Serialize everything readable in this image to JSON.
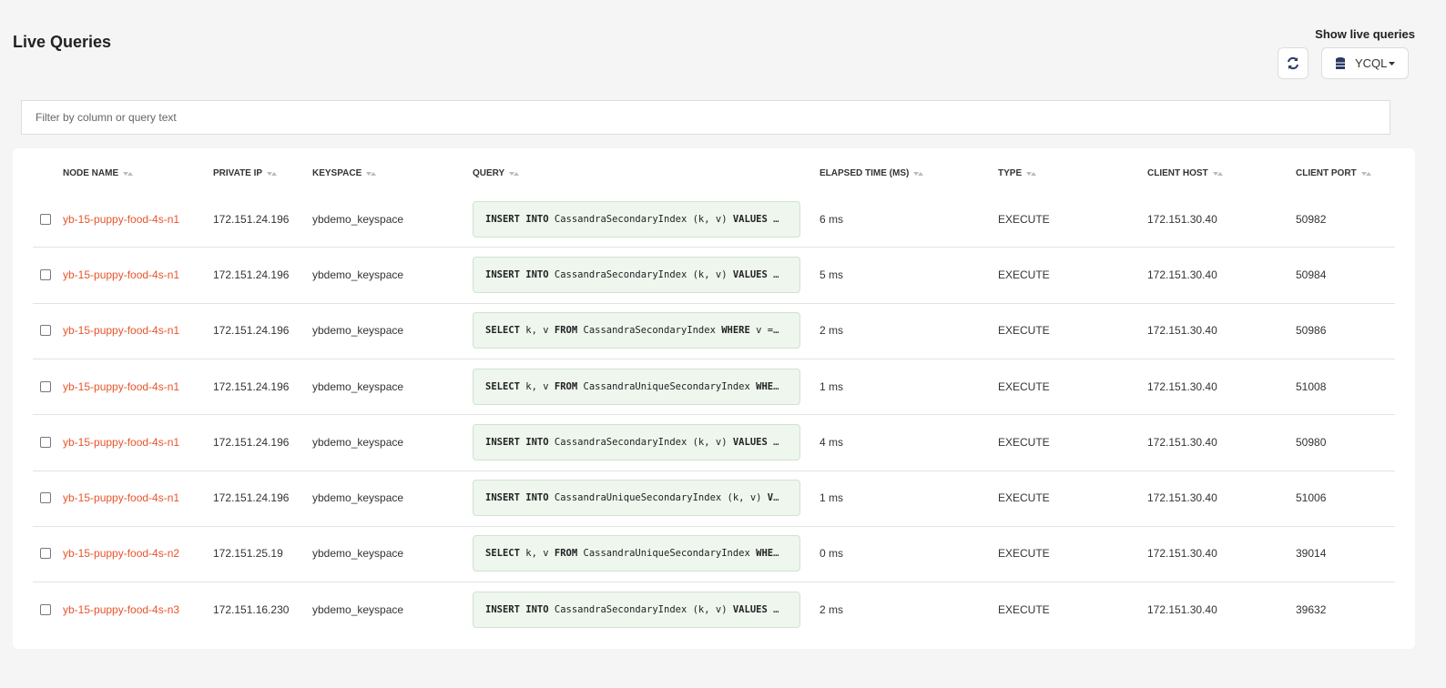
{
  "header": {
    "title": "Live Queries",
    "show_label": "Show live queries",
    "api_button": "YCQL"
  },
  "filter": {
    "placeholder": "Filter by column or query text"
  },
  "table": {
    "columns": [
      "NODE NAME",
      "PRIVATE IP",
      "KEYSPACE",
      "QUERY",
      "ELAPSED TIME (MS)",
      "TYPE",
      "CLIENT HOST",
      "CLIENT PORT"
    ],
    "rows": [
      [
        "yb-15-puppy-food-4s-n1",
        "172.151.24.196",
        "ybdemo_keyspace",
        "INSERT INTO CassandraSecondaryIndex (k, v) VALUES …",
        "6 ms",
        "EXECUTE",
        "172.151.30.40",
        "50982"
      ],
      [
        "yb-15-puppy-food-4s-n1",
        "172.151.24.196",
        "ybdemo_keyspace",
        "INSERT INTO CassandraSecondaryIndex (k, v) VALUES …",
        "5 ms",
        "EXECUTE",
        "172.151.30.40",
        "50984"
      ],
      [
        "yb-15-puppy-food-4s-n1",
        "172.151.24.196",
        "ybdemo_keyspace",
        "SELECT k, v FROM CassandraSecondaryIndex WHERE v =…",
        "2 ms",
        "EXECUTE",
        "172.151.30.40",
        "50986"
      ],
      [
        "yb-15-puppy-food-4s-n1",
        "172.151.24.196",
        "ybdemo_keyspace",
        "SELECT k, v FROM CassandraUniqueSecondaryIndex WHE…",
        "1 ms",
        "EXECUTE",
        "172.151.30.40",
        "51008"
      ],
      [
        "yb-15-puppy-food-4s-n1",
        "172.151.24.196",
        "ybdemo_keyspace",
        "INSERT INTO CassandraSecondaryIndex (k, v) VALUES …",
        "4 ms",
        "EXECUTE",
        "172.151.30.40",
        "50980"
      ],
      [
        "yb-15-puppy-food-4s-n1",
        "172.151.24.196",
        "ybdemo_keyspace",
        "INSERT INTO CassandraUniqueSecondaryIndex (k, v) V…",
        "1 ms",
        "EXECUTE",
        "172.151.30.40",
        "51006"
      ],
      [
        "yb-15-puppy-food-4s-n2",
        "172.151.25.19",
        "ybdemo_keyspace",
        "SELECT k, v FROM CassandraUniqueSecondaryIndex WHE…",
        "0 ms",
        "EXECUTE",
        "172.151.30.40",
        "39014"
      ],
      [
        "yb-15-puppy-food-4s-n3",
        "172.151.16.230",
        "ybdemo_keyspace",
        "INSERT INTO CassandraSecondaryIndex (k, v) VALUES …",
        "2 ms",
        "EXECUTE",
        "172.151.30.40",
        "39632"
      ]
    ]
  }
}
